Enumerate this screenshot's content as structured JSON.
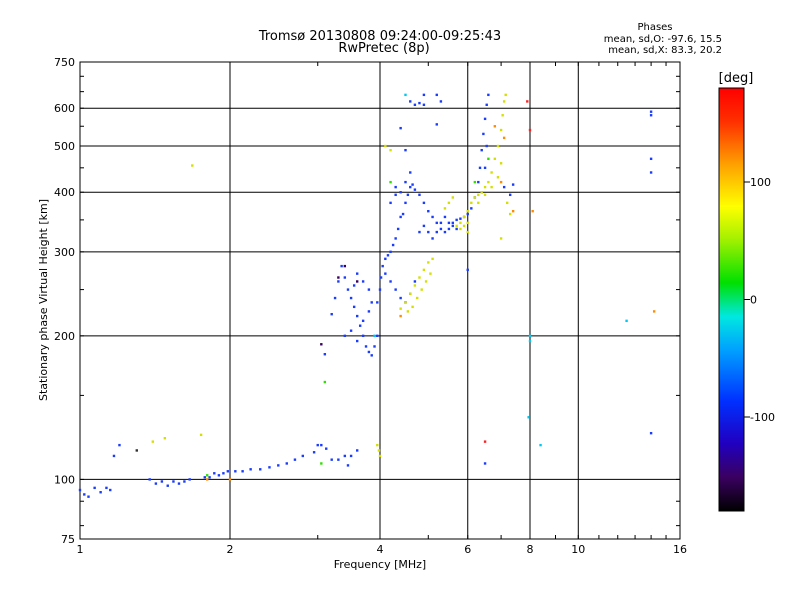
{
  "chart_data": {
    "type": "scatter",
    "title": "Tromsø 20130808 09:24:00-09:25:43",
    "subtitle": "RwPretec (8p)",
    "phases": {
      "heading": "Phases",
      "line_o": "mean, sd,O: -97.6, 15.5",
      "line_x": "mean, sd,X:  83.3, 20.2"
    },
    "xlabel": "Frequency [MHz]",
    "ylabel": "Stationary phase Virtual Height [km]",
    "x_scale": "log",
    "y_scale": "log",
    "xlim": [
      1,
      16
    ],
    "ylim": [
      75,
      750
    ],
    "x_ticks": [
      {
        "value": 1,
        "label": "1"
      },
      {
        "value": 2,
        "label": "2"
      },
      {
        "value": 4,
        "label": "4"
      },
      {
        "value": 6,
        "label": "6"
      },
      {
        "value": 8,
        "label": "8"
      },
      {
        "value": 10,
        "label": "10"
      },
      {
        "value": 16,
        "label": "16"
      }
    ],
    "x_grid": [
      2,
      4,
      6,
      8,
      10
    ],
    "y_ticks": [
      {
        "value": 75,
        "label": "75"
      },
      {
        "value": 100,
        "label": "100"
      },
      {
        "value": 200,
        "label": "200"
      },
      {
        "value": 300,
        "label": "300"
      },
      {
        "value": 400,
        "label": "400"
      },
      {
        "value": 500,
        "label": "500"
      },
      {
        "value": 600,
        "label": "600"
      },
      {
        "value": 750,
        "label": "750"
      }
    ],
    "y_grid": [
      100,
      200,
      300,
      400,
      500,
      600
    ],
    "grid": true,
    "colorbar": {
      "label": "[deg]",
      "range": [
        -180,
        180
      ],
      "ticks": [
        {
          "value": 100,
          "label": "100"
        },
        {
          "value": 0,
          "label": "0"
        },
        {
          "value": -100,
          "label": "-100"
        }
      ]
    },
    "series": [
      {
        "color": "#1a3cff",
        "points": [
          [
            1.0,
            95
          ],
          [
            1.02,
            93
          ],
          [
            1.04,
            92
          ],
          [
            1.07,
            96
          ],
          [
            1.1,
            94
          ],
          [
            1.13,
            96
          ],
          [
            1.15,
            95
          ],
          [
            1.17,
            112
          ],
          [
            1.38,
            100
          ],
          [
            1.42,
            98
          ],
          [
            1.46,
            99
          ],
          [
            1.5,
            97
          ],
          [
            1.54,
            99
          ],
          [
            1.58,
            98
          ],
          [
            1.62,
            99
          ],
          [
            1.66,
            100
          ],
          [
            1.78,
            101
          ],
          [
            1.82,
            101
          ],
          [
            1.86,
            103
          ],
          [
            1.9,
            102
          ],
          [
            1.94,
            103
          ],
          [
            1.98,
            104
          ],
          [
            2.05,
            104
          ],
          [
            2.12,
            104
          ],
          [
            2.2,
            105
          ],
          [
            2.3,
            105
          ],
          [
            2.4,
            106
          ],
          [
            2.5,
            107
          ],
          [
            2.6,
            108
          ],
          [
            2.7,
            110
          ],
          [
            2.8,
            112
          ],
          [
            2.95,
            114
          ],
          [
            3.0,
            118
          ],
          [
            3.05,
            118
          ],
          [
            3.12,
            116
          ],
          [
            3.2,
            110
          ],
          [
            3.3,
            110
          ],
          [
            3.4,
            112
          ],
          [
            3.1,
            183
          ],
          [
            3.2,
            222
          ],
          [
            3.25,
            240
          ],
          [
            3.3,
            260
          ],
          [
            3.35,
            280
          ],
          [
            3.4,
            265
          ],
          [
            3.45,
            250
          ],
          [
            3.5,
            240
          ],
          [
            3.55,
            230
          ],
          [
            3.6,
            220
          ],
          [
            3.65,
            210
          ],
          [
            3.7,
            200
          ],
          [
            3.75,
            190
          ],
          [
            3.8,
            185
          ],
          [
            3.85,
            182
          ],
          [
            3.9,
            190
          ],
          [
            3.95,
            200
          ],
          [
            3.55,
            255
          ],
          [
            3.6,
            270
          ],
          [
            3.7,
            260
          ],
          [
            3.8,
            250
          ],
          [
            3.5,
            205
          ],
          [
            3.6,
            195
          ],
          [
            3.7,
            215
          ],
          [
            3.8,
            225
          ],
          [
            3.85,
            235
          ],
          [
            3.95,
            235
          ],
          [
            3.4,
            200
          ],
          [
            4.0,
            250
          ],
          [
            4.02,
            265
          ],
          [
            4.05,
            280
          ],
          [
            4.1,
            290
          ],
          [
            4.15,
            295
          ],
          [
            4.2,
            300
          ],
          [
            4.25,
            310
          ],
          [
            4.3,
            320
          ],
          [
            4.35,
            335
          ],
          [
            4.4,
            355
          ],
          [
            4.45,
            360
          ],
          [
            4.5,
            380
          ],
          [
            4.55,
            395
          ],
          [
            4.6,
            410
          ],
          [
            4.65,
            415
          ],
          [
            4.7,
            405
          ],
          [
            4.8,
            395
          ],
          [
            4.9,
            380
          ],
          [
            5.0,
            365
          ],
          [
            5.1,
            355
          ],
          [
            5.2,
            345
          ],
          [
            5.3,
            335
          ],
          [
            5.4,
            330
          ],
          [
            5.5,
            335
          ],
          [
            5.6,
            345
          ],
          [
            5.7,
            350
          ],
          [
            5.8,
            352
          ],
          [
            5.9,
            355
          ],
          [
            6.0,
            360
          ],
          [
            6.1,
            370
          ],
          [
            6.2,
            390
          ],
          [
            6.3,
            420
          ],
          [
            6.35,
            450
          ],
          [
            6.4,
            490
          ],
          [
            6.45,
            530
          ],
          [
            6.5,
            570
          ],
          [
            6.55,
            610
          ],
          [
            6.6,
            640
          ],
          [
            4.1,
            270
          ],
          [
            4.2,
            260
          ],
          [
            4.3,
            250
          ],
          [
            4.4,
            240
          ],
          [
            4.5,
            235
          ],
          [
            4.6,
            245
          ],
          [
            4.7,
            260
          ],
          [
            4.8,
            330
          ],
          [
            4.9,
            340
          ],
          [
            5.0,
            330
          ],
          [
            5.1,
            320
          ],
          [
            5.2,
            330
          ],
          [
            5.3,
            345
          ],
          [
            5.4,
            355
          ],
          [
            5.5,
            345
          ],
          [
            5.6,
            340
          ],
          [
            5.7,
            335
          ],
          [
            4.2,
            380
          ],
          [
            4.3,
            395
          ],
          [
            4.4,
            400
          ],
          [
            4.5,
            420
          ],
          [
            4.6,
            440
          ],
          [
            6.4,
            400
          ],
          [
            6.5,
            450
          ],
          [
            6.55,
            500
          ],
          [
            4.6,
            620
          ],
          [
            4.7,
            610
          ],
          [
            4.8,
            615
          ],
          [
            4.9,
            610
          ],
          [
            4.9,
            640
          ],
          [
            5.2,
            640
          ],
          [
            5.3,
            620
          ],
          [
            4.4,
            545
          ],
          [
            4.5,
            490
          ],
          [
            4.3,
            410
          ],
          [
            5.2,
            555
          ],
          [
            6.0,
            275
          ],
          [
            7.1,
            410
          ],
          [
            7.4,
            415
          ],
          [
            7.3,
            395
          ],
          [
            6.5,
            108
          ],
          [
            14.0,
            125
          ],
          [
            14.0,
            440
          ],
          [
            14.0,
            470
          ],
          [
            14.0,
            580
          ],
          [
            14.0,
            590
          ],
          [
            3.6,
            115
          ],
          [
            3.5,
            112
          ],
          [
            3.45,
            107
          ],
          [
            1.2,
            118
          ]
        ]
      },
      {
        "color": "#d4e000",
        "points": [
          [
            4.4,
            228
          ],
          [
            4.5,
            235
          ],
          [
            4.6,
            245
          ],
          [
            4.7,
            255
          ],
          [
            4.8,
            265
          ],
          [
            4.9,
            275
          ],
          [
            5.0,
            285
          ],
          [
            5.1,
            290
          ],
          [
            4.55,
            225
          ],
          [
            4.65,
            230
          ],
          [
            4.75,
            240
          ],
          [
            4.85,
            250
          ],
          [
            4.95,
            260
          ],
          [
            5.05,
            270
          ],
          [
            5.7,
            340
          ],
          [
            5.8,
            345
          ],
          [
            5.9,
            355
          ],
          [
            6.0,
            365
          ],
          [
            6.1,
            380
          ],
          [
            6.2,
            390
          ],
          [
            6.3,
            395
          ],
          [
            6.4,
            400
          ],
          [
            6.5,
            410
          ],
          [
            6.6,
            420
          ],
          [
            6.7,
            440
          ],
          [
            6.8,
            470
          ],
          [
            6.9,
            500
          ],
          [
            7.0,
            540
          ],
          [
            7.05,
            580
          ],
          [
            7.1,
            620
          ],
          [
            7.15,
            640
          ],
          [
            5.8,
            335
          ],
          [
            5.9,
            340
          ],
          [
            6.0,
            345
          ],
          [
            6.3,
            380
          ],
          [
            6.5,
            395
          ],
          [
            6.7,
            410
          ],
          [
            6.9,
            430
          ],
          [
            7.0,
            460
          ],
          [
            5.4,
            370
          ],
          [
            5.5,
            380
          ],
          [
            5.6,
            390
          ],
          [
            6.0,
            330
          ],
          [
            3.95,
            118
          ],
          [
            3.98,
            115
          ],
          [
            4.0,
            112
          ],
          [
            1.75,
            124
          ],
          [
            1.4,
            120
          ],
          [
            1.48,
            122
          ],
          [
            1.68,
            455
          ],
          [
            4.2,
            490
          ],
          [
            4.1,
            500
          ],
          [
            7.3,
            360
          ],
          [
            7.2,
            380
          ],
          [
            7.0,
            320
          ]
        ]
      },
      {
        "color": "#ff8c00",
        "points": [
          [
            4.4,
            220
          ],
          [
            6.8,
            550
          ],
          [
            7.1,
            520
          ],
          [
            7.0,
            420
          ],
          [
            7.4,
            365
          ],
          [
            1.8,
            100
          ],
          [
            2.0,
            100
          ],
          [
            14.2,
            225
          ],
          [
            8.1,
            365
          ]
        ]
      },
      {
        "color": "#2ee000",
        "points": [
          [
            3.05,
            108
          ],
          [
            3.1,
            160
          ],
          [
            4.2,
            420
          ],
          [
            6.2,
            420
          ],
          [
            6.6,
            470
          ],
          [
            1.8,
            102
          ]
        ]
      },
      {
        "color": "#00c8f0",
        "points": [
          [
            4.5,
            640
          ],
          [
            8.0,
            200
          ],
          [
            8.0,
            195
          ],
          [
            7.95,
            135
          ],
          [
            8.4,
            118
          ],
          [
            12.5,
            215
          ],
          [
            3.9,
            200
          ]
        ]
      },
      {
        "color": "#ff2020",
        "points": [
          [
            6.5,
            120
          ],
          [
            8.0,
            540
          ],
          [
            7.9,
            620
          ]
        ]
      },
      {
        "color": "#3a0060",
        "points": [
          [
            3.05,
            192
          ],
          [
            3.3,
            265
          ],
          [
            3.4,
            280
          ],
          [
            3.6,
            260
          ]
        ]
      },
      {
        "color": "#303030",
        "points": [
          [
            1.3,
            115
          ]
        ]
      }
    ]
  }
}
